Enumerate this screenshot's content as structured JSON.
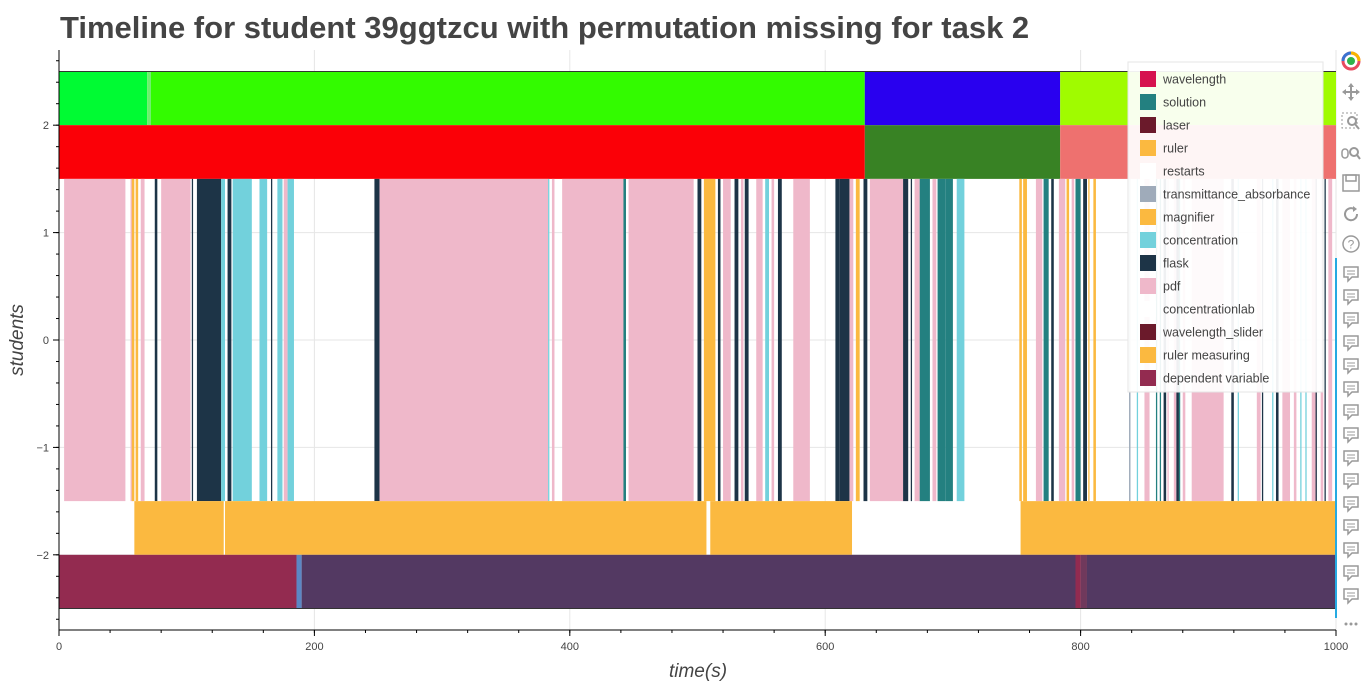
{
  "title": "Timeline for student 39ggtzcu with permutation missing for task 2",
  "chart_data": {
    "type": "timeline",
    "xlabel": "time(s)",
    "ylabel": "students",
    "xlim": [
      0,
      1000
    ],
    "ylim": [
      -2.7,
      2.7
    ],
    "x_ticks": [
      0,
      200,
      400,
      600,
      800,
      1000
    ],
    "x_tick_labels": [
      "0",
      "200",
      "400",
      "600",
      "800",
      "1000"
    ],
    "y_ticks": [
      2,
      1,
      0,
      -1,
      -2
    ],
    "y_tick_labels": [
      "2",
      "1",
      "0",
      "−1",
      "−2"
    ],
    "grid": true,
    "legend_position": "top-right",
    "legend": [
      {
        "label": "wavelength",
        "color": "#d6124f"
      },
      {
        "label": "solution",
        "color": "#238080"
      },
      {
        "label": "laser",
        "color": "#6b1a2b"
      },
      {
        "label": "ruler",
        "color": "#fbb940"
      },
      {
        "label": "restarts",
        "color": "#ffffff"
      },
      {
        "label": "transmittance_absorbance",
        "color": "#9fabba"
      },
      {
        "label": "magnifier",
        "color": "#fbb940"
      },
      {
        "label": "concentration",
        "color": "#72d1dc"
      },
      {
        "label": "flask",
        "color": "#1d3447"
      },
      {
        "label": "pdf",
        "color": "#efb8ca"
      },
      {
        "label": "concentrationlab",
        "color": "#ffffff"
      },
      {
        "label": "wavelength_slider",
        "color": "#6b1a2b"
      },
      {
        "label": "ruler measuring",
        "color": "#fbb940"
      },
      {
        "label": "dependent variable",
        "color": "#932b50"
      }
    ],
    "rows": [
      {
        "y0": 2,
        "y1": 2.5,
        "segments": [
          {
            "start": 0,
            "end": 69,
            "color": "#00fb33"
          },
          {
            "start": 69,
            "end": 72,
            "color": "#6df06d"
          },
          {
            "start": 72,
            "end": 631,
            "color": "#33fb00"
          },
          {
            "start": 631,
            "end": 784,
            "color": "#2900ef"
          },
          {
            "start": 784,
            "end": 1000,
            "color": "#a0fb00"
          }
        ]
      },
      {
        "y0": 1.5,
        "y1": 2,
        "segments": [
          {
            "start": 0,
            "end": 631,
            "color": "#fb0007"
          },
          {
            "start": 631,
            "end": 784,
            "color": "#388224"
          },
          {
            "start": 784,
            "end": 1000,
            "color": "#ee716f"
          }
        ]
      },
      {
        "y0": -1.5,
        "y1": 1.5,
        "segments": [
          {
            "start": 4,
            "end": 52,
            "color": "#efb8ca"
          },
          {
            "start": 56,
            "end": 58,
            "color": "#efb8ca"
          },
          {
            "start": 57,
            "end": 59,
            "color": "#fbb940"
          },
          {
            "start": 60,
            "end": 62,
            "color": "#fbb940"
          },
          {
            "start": 64,
            "end": 67,
            "color": "#efb8ca"
          },
          {
            "start": 75,
            "end": 77,
            "color": "#1d3447"
          },
          {
            "start": 80,
            "end": 103,
            "color": "#efb8ca"
          },
          {
            "start": 104,
            "end": 105,
            "color": "#1d3447"
          },
          {
            "start": 108,
            "end": 127,
            "color": "#1d3447"
          },
          {
            "start": 127,
            "end": 130,
            "color": "#72d1dc"
          },
          {
            "start": 132,
            "end": 135,
            "color": "#1d3447"
          },
          {
            "start": 136,
            "end": 151,
            "color": "#72d1dc"
          },
          {
            "start": 157,
            "end": 163,
            "color": "#72d1dc"
          },
          {
            "start": 166,
            "end": 167,
            "color": "#1d3447"
          },
          {
            "start": 171,
            "end": 175,
            "color": "#72d1dc"
          },
          {
            "start": 176,
            "end": 179,
            "color": "#efb8ca"
          },
          {
            "start": 179,
            "end": 184,
            "color": "#72d1dc"
          },
          {
            "start": 247,
            "end": 251,
            "color": "#1d3447"
          },
          {
            "start": 251,
            "end": 383,
            "color": "#efb8ca"
          },
          {
            "start": 383,
            "end": 384,
            "color": "#72d1dc"
          },
          {
            "start": 386,
            "end": 388,
            "color": "#efb8ca"
          },
          {
            "start": 394,
            "end": 442,
            "color": "#efb8ca"
          },
          {
            "start": 442,
            "end": 444,
            "color": "#238080"
          },
          {
            "start": 446,
            "end": 497,
            "color": "#efb8ca"
          },
          {
            "start": 500,
            "end": 503,
            "color": "#1d3447"
          },
          {
            "start": 505,
            "end": 514,
            "color": "#fbb940"
          },
          {
            "start": 516,
            "end": 518,
            "color": "#1d3447"
          },
          {
            "start": 520,
            "end": 526,
            "color": "#efb8ca"
          },
          {
            "start": 529,
            "end": 532,
            "color": "#1d3447"
          },
          {
            "start": 534,
            "end": 536,
            "color": "#efb8ca"
          },
          {
            "start": 537,
            "end": 540,
            "color": "#1d3447"
          },
          {
            "start": 546,
            "end": 551,
            "color": "#efb8ca"
          },
          {
            "start": 553,
            "end": 556,
            "color": "#72d1dc"
          },
          {
            "start": 558,
            "end": 560,
            "color": "#efb8ca"
          },
          {
            "start": 563,
            "end": 566,
            "color": "#1d3447"
          },
          {
            "start": 575,
            "end": 588,
            "color": "#efb8ca"
          },
          {
            "start": 608,
            "end": 611,
            "color": "#1d3447"
          },
          {
            "start": 611,
            "end": 619,
            "color": "#1d3447"
          },
          {
            "start": 619,
            "end": 622,
            "color": "#efb8ca"
          },
          {
            "start": 624,
            "end": 627,
            "color": "#fbb940"
          },
          {
            "start": 630,
            "end": 633,
            "color": "#1d3447"
          },
          {
            "start": 635,
            "end": 661,
            "color": "#efb8ca"
          },
          {
            "start": 661,
            "end": 665,
            "color": "#1d3447"
          },
          {
            "start": 667,
            "end": 668,
            "color": "#1d3447"
          },
          {
            "start": 670,
            "end": 674,
            "color": "#efb8ca"
          },
          {
            "start": 674,
            "end": 682,
            "color": "#238080"
          },
          {
            "start": 684,
            "end": 687,
            "color": "#efb8ca"
          },
          {
            "start": 688,
            "end": 694,
            "color": "#238080"
          },
          {
            "start": 694,
            "end": 700,
            "color": "#238080"
          },
          {
            "start": 703,
            "end": 709,
            "color": "#72d1dc"
          },
          {
            "start": 752,
            "end": 754,
            "color": "#fbb940"
          },
          {
            "start": 755,
            "end": 758,
            "color": "#fbb940"
          },
          {
            "start": 765,
            "end": 770,
            "color": "#efb8ca"
          },
          {
            "start": 771,
            "end": 775,
            "color": "#238080"
          },
          {
            "start": 777,
            "end": 779,
            "color": "#1d3447"
          },
          {
            "start": 783,
            "end": 788,
            "color": "#efb8ca"
          },
          {
            "start": 789,
            "end": 791,
            "color": "#fbb940"
          },
          {
            "start": 793,
            "end": 795,
            "color": "#efb8ca"
          },
          {
            "start": 796,
            "end": 800,
            "color": "#238080"
          },
          {
            "start": 802,
            "end": 805,
            "color": "#1d3447"
          },
          {
            "start": 806,
            "end": 807,
            "color": "#fbb940"
          },
          {
            "start": 810,
            "end": 812,
            "color": "#fbb940"
          },
          {
            "start": 838,
            "end": 839,
            "color": "#9fabba"
          },
          {
            "start": 838,
            "end": 839,
            "color": "#9fabba"
          },
          {
            "start": 844,
            "end": 845,
            "color": "#72d1dc"
          },
          {
            "start": 850,
            "end": 854,
            "color": "#efb8ca"
          },
          {
            "start": 859,
            "end": 860,
            "color": "#238080"
          },
          {
            "start": 862,
            "end": 863,
            "color": "#238080"
          },
          {
            "start": 865,
            "end": 867,
            "color": "#1d3447"
          },
          {
            "start": 868,
            "end": 869,
            "color": "#efb8ca"
          },
          {
            "start": 873,
            "end": 875,
            "color": "#efb8ca"
          },
          {
            "start": 875,
            "end": 877,
            "color": "#1d3447"
          },
          {
            "start": 877,
            "end": 878,
            "color": "#238080"
          },
          {
            "start": 880,
            "end": 882,
            "color": "#efb8ca"
          },
          {
            "start": 887,
            "end": 912,
            "color": "#efb8ca"
          },
          {
            "start": 918,
            "end": 920,
            "color": "#1d3447"
          },
          {
            "start": 923,
            "end": 924,
            "color": "#72d1dc"
          },
          {
            "start": 938,
            "end": 941,
            "color": "#efb8ca"
          },
          {
            "start": 942,
            "end": 943,
            "color": "#1d3447"
          },
          {
            "start": 950,
            "end": 951,
            "color": "#72d1dc"
          },
          {
            "start": 953,
            "end": 955,
            "color": "#1d3447"
          },
          {
            "start": 958,
            "end": 964,
            "color": "#efb8ca"
          },
          {
            "start": 967,
            "end": 969,
            "color": "#efb8ca"
          },
          {
            "start": 972,
            "end": 973,
            "color": "#72d1dc"
          },
          {
            "start": 976,
            "end": 977,
            "color": "#72d1dc"
          },
          {
            "start": 981,
            "end": 985,
            "color": "#efb8ca"
          },
          {
            "start": 984,
            "end": 985,
            "color": "#1d3447"
          },
          {
            "start": 988,
            "end": 990,
            "color": "#efb8ca"
          },
          {
            "start": 991,
            "end": 992,
            "color": "#1d3447"
          },
          {
            "start": 994,
            "end": 997,
            "color": "#efb8ca"
          }
        ]
      },
      {
        "y0": -2,
        "y1": -1.5,
        "segments": [
          {
            "start": 59,
            "end": 129,
            "color": "#fbb940"
          },
          {
            "start": 130,
            "end": 507,
            "color": "#fbb940"
          },
          {
            "start": 510,
            "end": 621,
            "color": "#fbb940"
          },
          {
            "start": 753,
            "end": 1000,
            "color": "#fbb940"
          }
        ]
      },
      {
        "y0": -2.5,
        "y1": -2,
        "segments": [
          {
            "start": 0,
            "end": 186,
            "color": "#932b50"
          },
          {
            "start": 186,
            "end": 190,
            "color": "#5b87c4"
          },
          {
            "start": 190,
            "end": 796,
            "color": "#533962"
          },
          {
            "start": 796,
            "end": 800,
            "color": "#932b50"
          },
          {
            "start": 800,
            "end": 805,
            "color": "#70395c"
          },
          {
            "start": 805,
            "end": 1000,
            "color": "#533962"
          }
        ]
      }
    ]
  },
  "toolbar": [
    {
      "name": "bokeh-logo-icon",
      "label": "Bokeh"
    },
    {
      "name": "pan-icon",
      "label": "Pan"
    },
    {
      "name": "box-zoom-icon",
      "label": "Box Zoom"
    },
    {
      "name": "wheel-zoom-icon",
      "label": "Wheel Zoom"
    },
    {
      "name": "save-icon",
      "label": "Save"
    },
    {
      "name": "reset-icon",
      "label": "Reset"
    },
    {
      "name": "help-icon",
      "label": "Help"
    },
    {
      "name": "hover-icon",
      "label": "Hover"
    },
    {
      "name": "more-icon",
      "label": "More"
    }
  ]
}
